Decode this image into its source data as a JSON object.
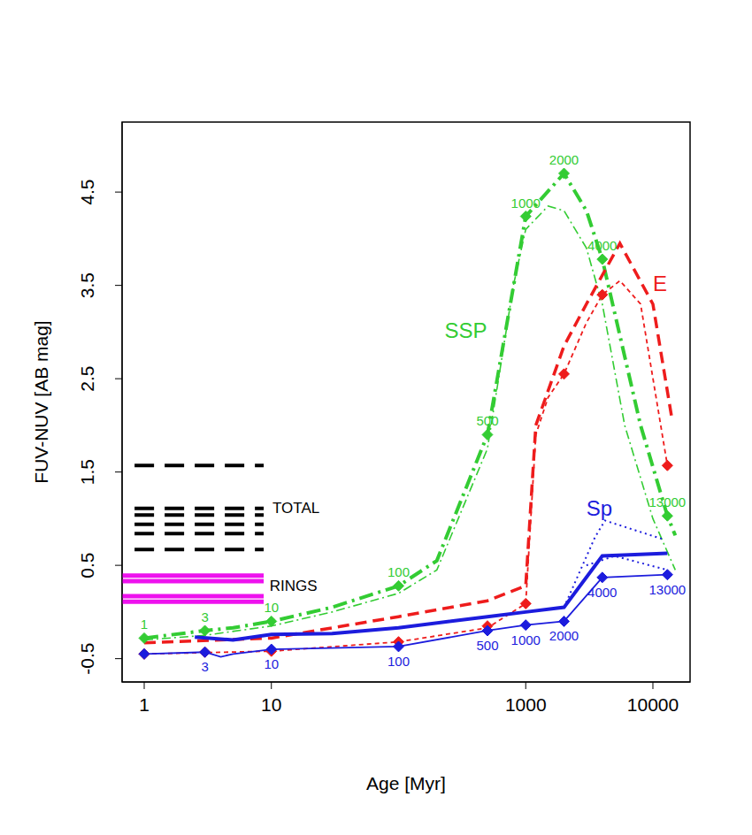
{
  "chart_data": {
    "type": "line",
    "x_label": "Age [Myr]",
    "y_label": "FUV-NUV [AB mag]",
    "log": "x",
    "grid": false,
    "xlim": [
      0.67,
      19600
    ],
    "xticks": [
      1,
      10,
      1000,
      10000
    ],
    "ylim": [
      -0.75,
      5.25
    ],
    "yticks": [
      -0.5,
      0.5,
      1.5,
      2.5,
      3.5,
      4.5
    ],
    "segments": [
      {
        "color": "#000000",
        "line_style": "dashed",
        "x": [
          0.84,
          8.7
        ],
        "values": [
          1.57,
          1.11,
          1.04,
          0.94,
          0.84,
          0.67
        ]
      },
      {
        "color": "#ee11ee",
        "line_style": "solid",
        "x": [
          0.67,
          8.7
        ],
        "values": [
          0.39,
          0.33,
          0.17,
          0.11
        ]
      }
    ],
    "series": [
      {
        "color": "#33cc33",
        "line_style": "thin_dashdot",
        "marker": "none",
        "x": [
          1,
          3,
          10,
          30,
          100,
          200,
          500,
          800,
          1000,
          1500,
          2000,
          3000,
          4000,
          6000,
          10000,
          15000
        ],
        "values": [
          -0.3,
          -0.25,
          -0.15,
          0.0,
          0.2,
          0.45,
          1.75,
          3.5,
          4.1,
          4.35,
          4.3,
          3.9,
          3.3,
          2.0,
          1.0,
          0.45
        ]
      },
      {
        "color": "#33cc33",
        "line_style": "thick_dashdot",
        "marker": "none",
        "x": [
          1,
          3,
          5,
          10,
          30,
          100,
          200,
          500,
          1000,
          2000,
          3000,
          4000,
          8000,
          13000,
          15000
        ],
        "values": [
          -0.28,
          -0.2,
          -0.17,
          -0.1,
          0.05,
          0.28,
          0.55,
          1.9,
          4.24,
          4.7,
          4.3,
          3.78,
          2.0,
          1.03,
          0.82
        ]
      },
      {
        "color": "#ee1c1c",
        "line_style": "thin_dashed",
        "marker": "none",
        "x": [
          1,
          10,
          100,
          500,
          1000,
          1200,
          1500,
          2000,
          3000,
          4000,
          5500,
          8000,
          13000
        ],
        "values": [
          -0.45,
          -0.42,
          -0.32,
          -0.17,
          0.09,
          1.9,
          2.3,
          2.55,
          3.1,
          3.4,
          3.55,
          3.3,
          1.57
        ]
      },
      {
        "color": "#ee1c1c",
        "line_style": "thick_dashed",
        "marker": "none",
        "x": [
          1,
          10,
          100,
          500,
          1000,
          1200,
          2000,
          3000,
          5500,
          10000,
          14000
        ],
        "values": [
          -0.33,
          -0.28,
          -0.05,
          0.12,
          0.28,
          2.0,
          2.85,
          3.3,
          3.95,
          3.3,
          2.1
        ]
      },
      {
        "color": "#1c1cdd",
        "line_style": "thin_solid",
        "marker": "none",
        "x": [
          1,
          3,
          4,
          5,
          10,
          100,
          500,
          1000,
          2000,
          4000,
          13000
        ],
        "values": [
          -0.45,
          -0.43,
          -0.48,
          -0.45,
          -0.4,
          -0.37,
          -0.2,
          -0.14,
          -0.1,
          0.37,
          0.4
        ]
      },
      {
        "color": "#1c1cdd",
        "line_style": "thick_solid",
        "marker": "none",
        "x": [
          2.5,
          5,
          10,
          30,
          100,
          500,
          1000,
          2000,
          4000,
          13000
        ],
        "values": [
          -0.27,
          -0.3,
          -0.24,
          -0.23,
          -0.17,
          -0.05,
          0.0,
          0.05,
          0.6,
          0.63
        ]
      },
      {
        "color": "#1c1cdd",
        "line_style": "thin_dotted",
        "marker": "none",
        "x": [
          2000,
          3500,
          4200,
          12000
        ],
        "values": [
          0.05,
          0.8,
          0.98,
          0.78
        ]
      },
      {
        "color": "#1c1cdd",
        "line_style": "thin_dotted",
        "marker": "none",
        "x": [
          3000,
          5000,
          13000
        ],
        "values": [
          0.5,
          0.6,
          0.45
        ]
      },
      {
        "color": "#33cc33",
        "line_style": "none",
        "marker": "diamond",
        "x": [
          1,
          3,
          10,
          100,
          500,
          1000,
          2000,
          4000,
          13000
        ],
        "values": [
          -0.28,
          -0.2,
          -0.1,
          0.28,
          1.9,
          4.24,
          4.7,
          3.78,
          1.03
        ],
        "point_labels": [
          "1",
          "3",
          "10",
          "100",
          "500",
          "1000",
          "2000",
          "4000",
          "13000"
        ]
      },
      {
        "color": "#ee1c1c",
        "line_style": "none",
        "marker": "diamond",
        "x": [
          1,
          3,
          10,
          100,
          500,
          1000,
          2000,
          4000,
          13000
        ],
        "values": [
          -0.45,
          -0.43,
          -0.42,
          -0.32,
          -0.15,
          0.09,
          2.55,
          3.4,
          1.57
        ]
      },
      {
        "color": "#1c1cdd",
        "line_style": "none",
        "marker": "diamond",
        "x": [
          1,
          3,
          10,
          100,
          500,
          1000,
          2000,
          4000,
          13000
        ],
        "values": [
          -0.45,
          -0.43,
          -0.4,
          -0.37,
          -0.2,
          -0.14,
          -0.1,
          0.37,
          0.4
        ],
        "point_labels": [
          null,
          "3",
          "10",
          "100",
          "500",
          "1000",
          "2000",
          "4000",
          "13000"
        ]
      }
    ],
    "annotations": [
      {
        "text": "SSP",
        "x": 230,
        "y": 3.0,
        "color": "#33cc33"
      },
      {
        "text": "E",
        "x": 10000,
        "y": 3.5,
        "color": "#ee1c1c"
      },
      {
        "text": "Sp",
        "x": 3000,
        "y": 1.09,
        "color": "#1c1cdd"
      },
      {
        "text": "TOTAL",
        "x": 10.2,
        "y": 1.1,
        "color": "#000000"
      },
      {
        "text": "RINGS",
        "x": 9.7,
        "y": 0.27,
        "color": "#000000"
      }
    ]
  }
}
